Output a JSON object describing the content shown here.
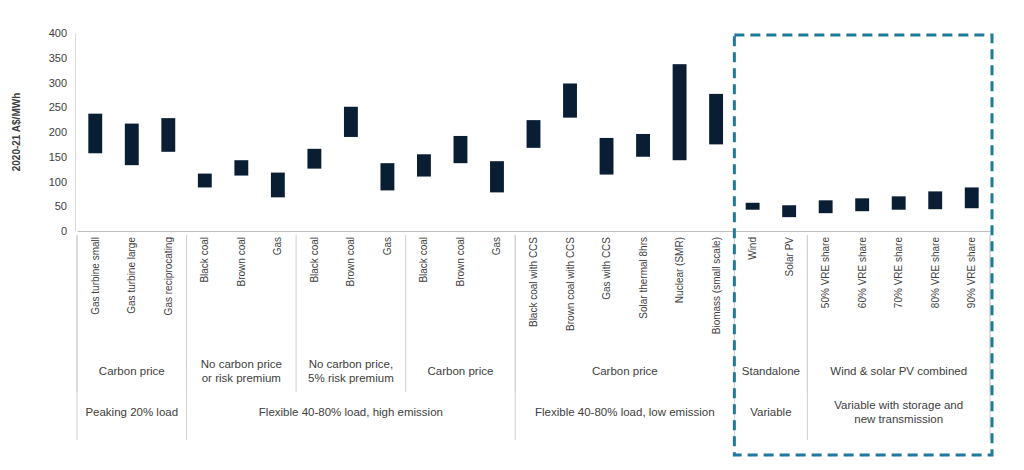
{
  "chart_data": {
    "type": "bar",
    "y_label": "2020-21 A$/MWh",
    "categories": [
      "Gas turbine small",
      "Gas turbine large",
      "Gas reciprocating",
      "Black coal",
      "Brown coal",
      "Gas",
      "Black coal",
      "Brown coal",
      "Gas",
      "Black coal",
      "Brown coal",
      "Gas",
      "Black coal with CCS",
      "Brown coal with CCS",
      "Gas with CCS",
      "Solar thermal 8hrs",
      "Nuclear (SMR)",
      "Biomass (small scale)",
      "Wind",
      "Solar PV",
      "50% VRE share",
      "60% VRE share",
      "70% VRE share",
      "80% VRE share",
      "90% VRE share"
    ],
    "values": [
      [
        157,
        237
      ],
      [
        133,
        217
      ],
      [
        160,
        228
      ],
      [
        88,
        116
      ],
      [
        112,
        143
      ],
      [
        68,
        118
      ],
      [
        126,
        166
      ],
      [
        190,
        251
      ],
      [
        82,
        137
      ],
      [
        110,
        155
      ],
      [
        137,
        192
      ],
      [
        78,
        141
      ],
      [
        168,
        224
      ],
      [
        229,
        298
      ],
      [
        114,
        188
      ],
      [
        150,
        196
      ],
      [
        143,
        337
      ],
      [
        175,
        277
      ],
      [
        43,
        57
      ],
      [
        28,
        52
      ],
      [
        36,
        62
      ],
      [
        40,
        66
      ],
      [
        43,
        70
      ],
      [
        44,
        80
      ],
      [
        46,
        88
      ]
    ],
    "color": "#0a1e33",
    "ylim": [
      0,
      400
    ],
    "yticks": [
      0,
      50,
      100,
      150,
      200,
      250,
      300,
      350,
      400
    ],
    "grid": false,
    "groups": [
      [
        {
          "lines": [
            "Carbon price"
          ],
          "span": 3
        },
        {
          "lines": [
            "No carbon price",
            "or risk premium"
          ],
          "span": 3
        },
        {
          "lines": [
            "No carbon price,",
            "5% risk premium"
          ],
          "span": 3
        },
        {
          "lines": [
            "Carbon price"
          ],
          "span": 3
        },
        {
          "lines": [
            "Carbon price"
          ],
          "span": 6
        },
        {
          "lines": [
            "Standalone"
          ],
          "span": 2
        },
        {
          "lines": [
            "Wind & solar PV combined"
          ],
          "span": 5
        }
      ],
      [
        {
          "lines": [
            "Peaking 20% load"
          ],
          "span": 3
        },
        {
          "lines": [
            "Flexible 40-80% load, high emission"
          ],
          "span": 9
        },
        {
          "lines": [
            "Flexible 40-80% load, low emission"
          ],
          "span": 6
        },
        {
          "lines": [
            "Variable"
          ],
          "span": 2
        },
        {
          "lines": [
            "Variable with storage and",
            "new transmission"
          ],
          "span": 5
        }
      ]
    ]
  }
}
